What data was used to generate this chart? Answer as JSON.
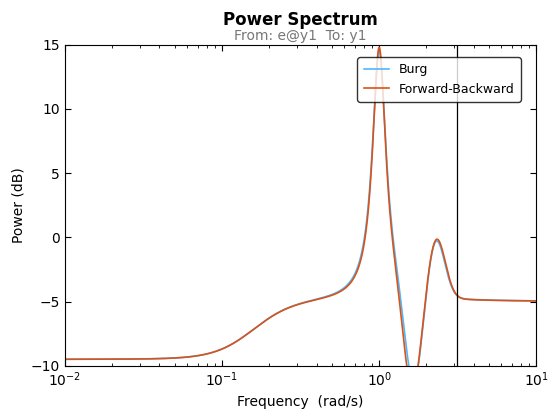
{
  "title": "Power Spectrum",
  "subtitle": "From: e@y1  To: y1",
  "xlabel": "Frequency  (rad/s)",
  "ylabel": "Power (dB)",
  "xlim": [
    0.01,
    10
  ],
  "ylim": [
    -10,
    15
  ],
  "yticks": [
    -10,
    -5,
    0,
    5,
    10,
    15
  ],
  "vline_x": 3.14159,
  "burg_color": "#4db8ff",
  "fb_color": "#d95319",
  "legend_labels": [
    "Burg",
    "Forward-Backward"
  ],
  "background_color": "#ffffff",
  "title_fontsize": 12,
  "subtitle_fontsize": 10,
  "axis_fontsize": 10,
  "legend_fontsize": 9
}
